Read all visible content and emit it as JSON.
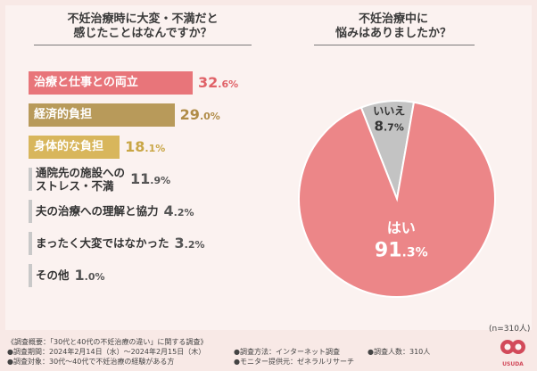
{
  "left_question": [
    "不妊治療時に大変・不満だと",
    "感じたことはなんですか？"
  ],
  "right_question": [
    "不妊治療中に",
    "悩みはありましたか？"
  ],
  "sample_size": "(n=310人)",
  "chart_data": [
    {
      "type": "bar",
      "orientation": "horizontal",
      "title": "不妊治療時に大変・不満だと感じたことはなんですか？",
      "categories": [
        "治療と仕事との両立",
        "経済的負担",
        "身体的な負担",
        "通院先の施設へのストレス・不満",
        "夫の治療への理解と協力",
        "まったく大変ではなかった",
        "その他"
      ],
      "display_labels": [
        [
          "治療と仕事との両立"
        ],
        [
          "経済的負担"
        ],
        [
          "身体的な負担"
        ],
        [
          "通院先の施設への",
          "ストレス・不満"
        ],
        [
          "夫の治療への理解と協力"
        ],
        [
          "まったく大変ではなかった"
        ],
        [
          "その他"
        ]
      ],
      "values": [
        32.6,
        29.0,
        18.1,
        11.9,
        4.2,
        3.2,
        1.0
      ],
      "value_labels": [
        {
          "int": "32",
          "dec": ".6",
          "unit": "%"
        },
        {
          "int": "29",
          "dec": ".0",
          "unit": "%"
        },
        {
          "int": "18",
          "dec": ".1",
          "unit": "%"
        },
        {
          "int": "11",
          "dec": ".9",
          "unit": "%"
        },
        {
          "int": "4",
          "dec": ".2",
          "unit": "%"
        },
        {
          "int": "3",
          "dec": ".2",
          "unit": "%"
        },
        {
          "int": "1",
          "dec": ".0",
          "unit": "%"
        }
      ],
      "xlim": [
        0,
        32.6
      ],
      "colors": [
        "#e8757a",
        "#b89a5a",
        "#d8b65c",
        "#c9c9c9",
        "#c9c9c9",
        "#c9c9c9",
        "#c9c9c9"
      ],
      "value_colors": [
        "#e06268",
        "#b08c48",
        "#c9a645",
        "#555555",
        "#555555",
        "#555555",
        "#555555"
      ]
    },
    {
      "type": "pie",
      "title": "不妊治療中に悩みはありましたか？",
      "categories": [
        "はい",
        "いいえ"
      ],
      "values": [
        91.3,
        8.7
      ],
      "value_labels": [
        {
          "int": "91",
          "dec": ".3",
          "unit": "%"
        },
        {
          "int": "8",
          "dec": ".7",
          "unit": "%"
        }
      ],
      "colors": [
        "#ec8688",
        "#c3c3c3"
      ]
    }
  ],
  "footer": {
    "lines": [
      "《調査概要：「30代と40代の不妊治療の違い」に関する調査》",
      "●調査期間：2024年2月14日（水）～2024年2月15日（木）",
      "●調査対象：30代～40代で不妊治療の経験がある方"
    ],
    "method": "●調査方法：インターネット調査",
    "provider": "●モニター提供元：ゼネラルリサーチ",
    "respondents": "●調査人数：310人"
  },
  "logo_text": "USUDA"
}
